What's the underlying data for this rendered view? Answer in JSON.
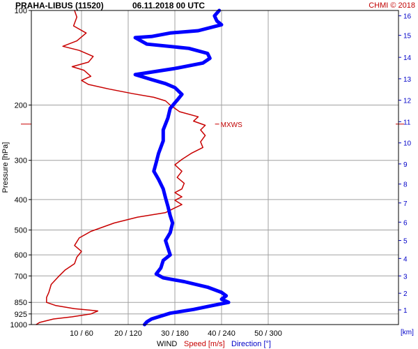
{
  "header": {
    "station": "PRAHA-LIBUS (11520)",
    "datetime": "06.11.2018 00 UTC",
    "credit": "CHMI © 2018"
  },
  "chart_data": {
    "type": "line",
    "title": "PRAHA-LIBUS (11520)    06.11.2018 00 UTC",
    "ylabel": "Pressure [hPa]",
    "y_scale": "log",
    "y_reversed": true,
    "ylim": [
      100,
      1000
    ],
    "y_ticks": [
      100,
      200,
      300,
      400,
      500,
      600,
      700,
      850,
      925,
      1000
    ],
    "x_ticks": [
      "10 / 60",
      "20 / 120",
      "30 / 180",
      "40 / 240",
      "50 / 300"
    ],
    "x_tick_values": [
      10,
      20,
      30,
      40,
      50
    ],
    "xlim": [
      0,
      57
    ],
    "x_label_prefix": "WIND",
    "x_label_speed": "Speed [m/s]",
    "x_label_direction": "Direction [°]",
    "secondary_y_label": "[km]",
    "km_ticks": [
      {
        "km": "16",
        "p": 104
      },
      {
        "km": "15",
        "p": 120
      },
      {
        "km": "14",
        "p": 141
      },
      {
        "km": "13",
        "p": 165
      },
      {
        "km": "12",
        "p": 193
      },
      {
        "km": "11",
        "p": 226
      },
      {
        "km": "10",
        "p": 264
      },
      {
        "km": "9",
        "p": 308
      },
      {
        "km": "8",
        "p": 357
      },
      {
        "km": "7",
        "p": 410
      },
      {
        "km": "6",
        "p": 472
      },
      {
        "km": "5",
        "p": 540
      },
      {
        "km": "4",
        "p": 616
      },
      {
        "km": "3",
        "p": 700
      },
      {
        "km": "2",
        "p": 795
      },
      {
        "km": "1",
        "p": 898
      }
    ],
    "annotation": {
      "text": "MXWS",
      "p": 230,
      "x": 39.5
    },
    "grid": true,
    "series": [
      {
        "name": "Speed [m/s]",
        "color": "#c80000",
        "points": [
          [
            8.5,
            100
          ],
          [
            9.0,
            105
          ],
          [
            8.3,
            112
          ],
          [
            11.0,
            118
          ],
          [
            9.0,
            125
          ],
          [
            6.0,
            130
          ],
          [
            9.5,
            134
          ],
          [
            12.5,
            140
          ],
          [
            11.5,
            146
          ],
          [
            8.0,
            151
          ],
          [
            10.5,
            155
          ],
          [
            12.0,
            162
          ],
          [
            10.0,
            167
          ],
          [
            11.5,
            172
          ],
          [
            16.0,
            178
          ],
          [
            21.0,
            184
          ],
          [
            25.5,
            189
          ],
          [
            28.0,
            194
          ],
          [
            29.0,
            200
          ],
          [
            31.0,
            210
          ],
          [
            35.0,
            218
          ],
          [
            34.0,
            225
          ],
          [
            36.5,
            232
          ],
          [
            35.5,
            240
          ],
          [
            36.5,
            250
          ],
          [
            35.5,
            262
          ],
          [
            36.0,
            273
          ],
          [
            33.5,
            285
          ],
          [
            31.5,
            298
          ],
          [
            30.0,
            310
          ],
          [
            31.5,
            325
          ],
          [
            30.5,
            340
          ],
          [
            32.0,
            355
          ],
          [
            31.5,
            370
          ],
          [
            30.0,
            380
          ],
          [
            31.5,
            392
          ],
          [
            30.0,
            402
          ],
          [
            31.5,
            415
          ],
          [
            30.0,
            425
          ],
          [
            28.0,
            440
          ],
          [
            22.0,
            455
          ],
          [
            17.0,
            475
          ],
          [
            12.0,
            505
          ],
          [
            9.5,
            530
          ],
          [
            8.5,
            560
          ],
          [
            10.0,
            585
          ],
          [
            9.0,
            610
          ],
          [
            8.5,
            640
          ],
          [
            6.5,
            670
          ],
          [
            5.0,
            705
          ],
          [
            3.5,
            745
          ],
          [
            3.0,
            790
          ],
          [
            2.5,
            820
          ],
          [
            2.5,
            850
          ],
          [
            4.5,
            870
          ],
          [
            8.5,
            890
          ],
          [
            13.5,
            905
          ],
          [
            12.0,
            925
          ],
          [
            8.0,
            945
          ],
          [
            4.0,
            960
          ],
          [
            1.0,
            985
          ],
          [
            0.3,
            1000
          ]
        ]
      },
      {
        "name": "Direction [°]",
        "color": "#0000ff",
        "points": [
          [
            39.5,
            100
          ],
          [
            38.5,
            104
          ],
          [
            39.0,
            108
          ],
          [
            40.0,
            111
          ],
          [
            35.0,
            116
          ],
          [
            29.0,
            118
          ],
          [
            25.0,
            121
          ],
          [
            21.5,
            122
          ],
          [
            24.0,
            128
          ],
          [
            33.0,
            132
          ],
          [
            37.0,
            137
          ],
          [
            37.5,
            142
          ],
          [
            36.0,
            147
          ],
          [
            30.0,
            153
          ],
          [
            21.5,
            160
          ],
          [
            25.0,
            166
          ],
          [
            28.0,
            171
          ],
          [
            30.0,
            176
          ],
          [
            31.5,
            185
          ],
          [
            30.5,
            193
          ],
          [
            29.0,
            205
          ],
          [
            28.5,
            220
          ],
          [
            27.5,
            240
          ],
          [
            27.5,
            260
          ],
          [
            26.5,
            285
          ],
          [
            26.0,
            305
          ],
          [
            25.5,
            325
          ],
          [
            26.5,
            345
          ],
          [
            27.5,
            370
          ],
          [
            28.0,
            395
          ],
          [
            28.5,
            420
          ],
          [
            29.0,
            450
          ],
          [
            29.5,
            475
          ],
          [
            29.0,
            510
          ],
          [
            28.0,
            540
          ],
          [
            28.5,
            570
          ],
          [
            29.0,
            600
          ],
          [
            27.5,
            625
          ],
          [
            27.0,
            660
          ],
          [
            26.0,
            690
          ],
          [
            27.5,
            710
          ],
          [
            32.0,
            730
          ],
          [
            37.0,
            760
          ],
          [
            40.0,
            790
          ],
          [
            41.0,
            810
          ],
          [
            40.0,
            830
          ],
          [
            41.5,
            850
          ],
          [
            38.0,
            870
          ],
          [
            34.0,
            895
          ],
          [
            29.0,
            920
          ],
          [
            25.0,
            960
          ],
          [
            24.0,
            980
          ],
          [
            23.5,
            1000
          ]
        ]
      }
    ]
  }
}
